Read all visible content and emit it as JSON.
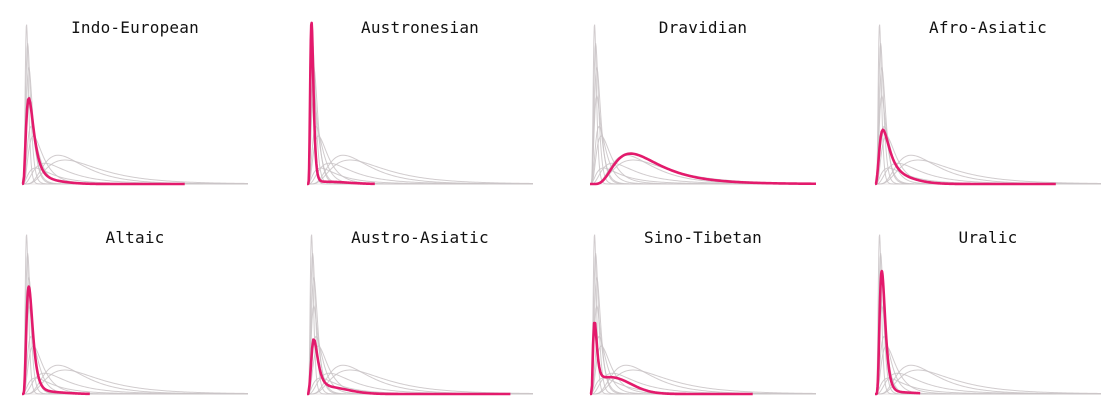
{
  "colors": {
    "highlight": "#e31a6c",
    "background_curves": "#c9c3c6",
    "baseline": "#e8e4e6"
  },
  "chart_data": [
    {
      "type": "line",
      "title": "Indo-European",
      "highlight": {
        "peak": 0.52,
        "mode": 0.03,
        "spread": 0.55,
        "tail": 0.006,
        "xmax": 0.72
      }
    },
    {
      "type": "line",
      "title": "Austronesian",
      "highlight": {
        "peak": 1.0,
        "mode": 0.02,
        "spread": 0.35,
        "tail": 0.004,
        "xmax": 0.3
      }
    },
    {
      "type": "line",
      "title": "Dravidian",
      "highlight": {
        "peak": 0.19,
        "mode": 0.18,
        "spread": 0.55,
        "tail": 0.0,
        "xmax": 1.0
      }
    },
    {
      "type": "line",
      "title": "Afro-Asiatic",
      "highlight": {
        "peak": 0.31,
        "mode": 0.035,
        "spread": 0.6,
        "tail": 0.01,
        "xmax": 0.8
      }
    },
    {
      "type": "line",
      "title": "Altaic",
      "highlight": {
        "peak": 0.66,
        "mode": 0.03,
        "spread": 0.45,
        "tail": 0.004,
        "xmax": 0.3
      }
    },
    {
      "type": "line",
      "title": "Austro-Asiatic",
      "highlight": {
        "peak": 0.31,
        "mode": 0.03,
        "spread": 0.45,
        "tail": 0.012,
        "xmax": 0.9
      }
    },
    {
      "type": "line",
      "title": "Sino-Tibetan",
      "highlight": {
        "peak": 0.38,
        "mode": 0.02,
        "spread": 0.4,
        "tail": 0.03,
        "xmax": 0.72
      }
    },
    {
      "type": "line",
      "title": "Uralic",
      "highlight": {
        "peak": 0.76,
        "mode": 0.03,
        "spread": 0.4,
        "tail": 0.003,
        "xmax": 0.2
      }
    }
  ],
  "background_family": [
    {
      "peak": 1.0,
      "mode": 0.02,
      "spread": 0.35,
      "tail": 0.0,
      "xmax": 0.3
    },
    {
      "peak": 0.88,
      "mode": 0.025,
      "spread": 0.4,
      "tail": 0.0,
      "xmax": 0.4
    },
    {
      "peak": 0.73,
      "mode": 0.03,
      "spread": 0.45,
      "tail": 0.0,
      "xmax": 0.5
    },
    {
      "peak": 0.55,
      "mode": 0.03,
      "spread": 0.5,
      "tail": 0.0,
      "xmax": 0.6
    },
    {
      "peak": 0.36,
      "mode": 0.04,
      "spread": 0.55,
      "tail": 0.0,
      "xmax": 0.7
    },
    {
      "peak": 0.3,
      "mode": 0.05,
      "spread": 0.6,
      "tail": 0.0,
      "xmax": 0.8
    },
    {
      "peak": 0.18,
      "mode": 0.16,
      "spread": 0.55,
      "tail": 0.0,
      "xmax": 1.0
    },
    {
      "peak": 0.15,
      "mode": 0.19,
      "spread": 0.6,
      "tail": 0.0,
      "xmax": 1.0
    },
    {
      "peak": 0.13,
      "mode": 0.1,
      "spread": 0.7,
      "tail": 0.0,
      "xmax": 1.0
    },
    {
      "peak": 0.1,
      "mode": 0.06,
      "spread": 0.8,
      "tail": 0.0,
      "xmax": 1.0
    }
  ]
}
